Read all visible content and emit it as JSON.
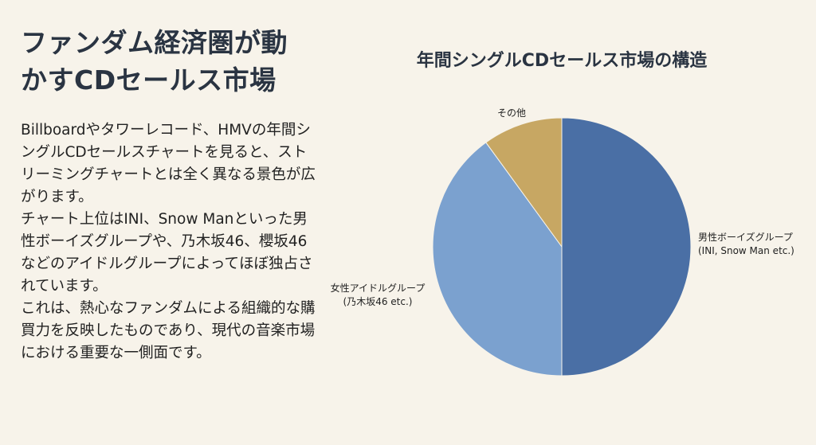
{
  "headline": {
    "line1": "ファンダム経済圏が動",
    "line2": "かすCDセールス市場"
  },
  "paragraphs": [
    "Billboardやタワーレコード、HMVの年間シングルCDセールスチャートを見ると、ストリーミングチャートとは全く異なる景色が広がります。",
    "チャート上位はINI、Snow Manといった男性ボーイズグループや、乃木坂46、櫻坂46などのアイドルグループによってほぼ独占されています。",
    "これは、熱心なファンダムによる組織的な購買力を反映したものであり、現代の音楽市場における重要な一側面です。"
  ],
  "chart_data": {
    "type": "pie",
    "title": "年間シングルCDセールス市場の構造",
    "slices": [
      {
        "label": "男性ボーイズグループ",
        "sublabel": "(INI, Snow Man etc.)",
        "value": 50,
        "color": "#4a6fa5"
      },
      {
        "label": "女性アイドルグループ",
        "sublabel": "(乃木坂46 etc.)",
        "value": 40,
        "color": "#7ba1cf"
      },
      {
        "label": "その他",
        "sublabel": "",
        "value": 10,
        "color": "#c7a763"
      }
    ],
    "legend": "none"
  }
}
